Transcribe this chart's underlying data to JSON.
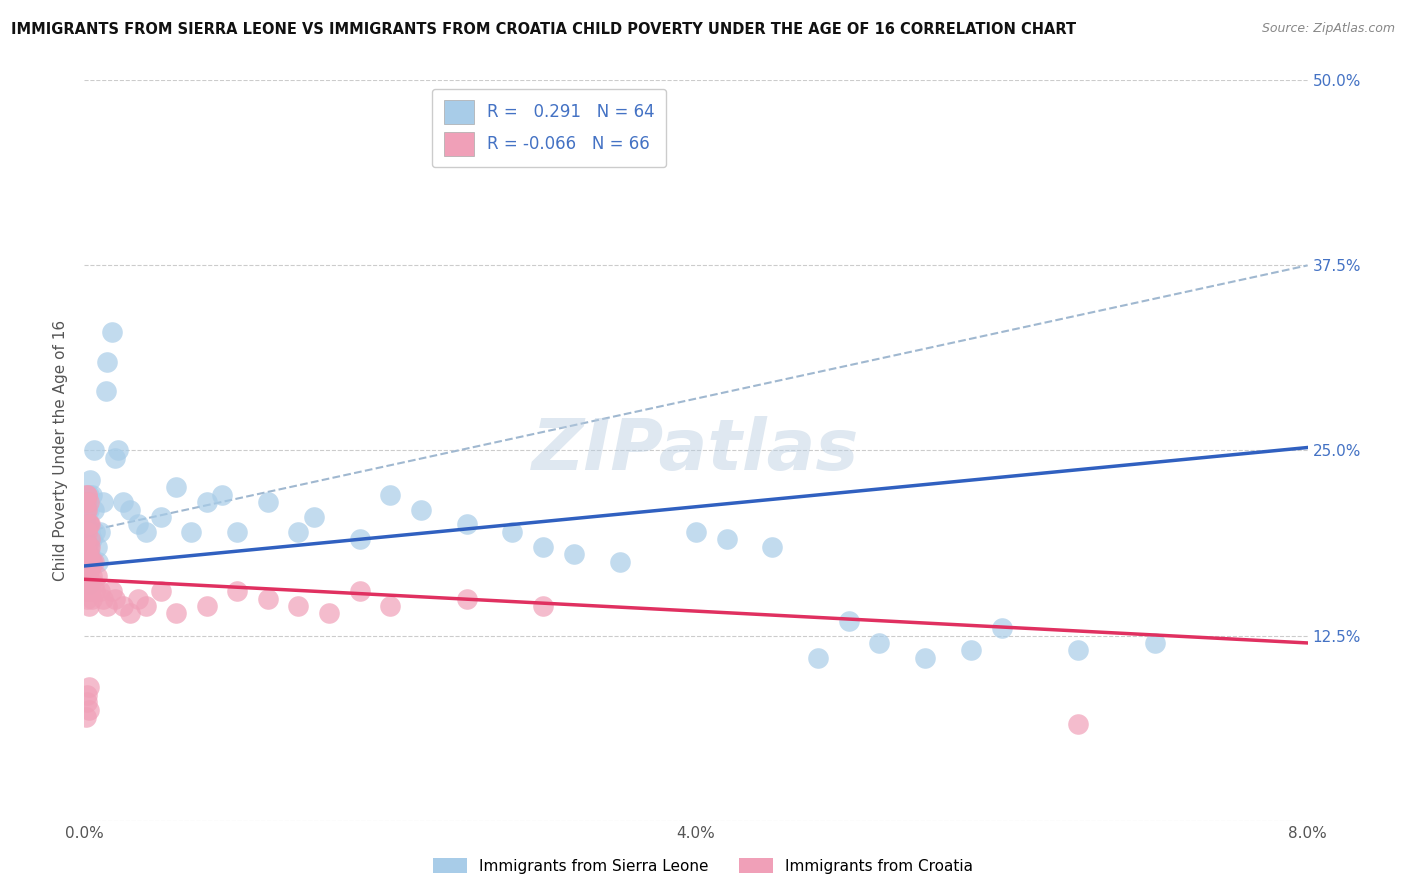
{
  "title": "IMMIGRANTS FROM SIERRA LEONE VS IMMIGRANTS FROM CROATIA CHILD POVERTY UNDER THE AGE OF 16 CORRELATION CHART",
  "source": "Source: ZipAtlas.com",
  "ylabel": "Child Poverty Under the Age of 16",
  "r_sierra": 0.291,
  "n_sierra": 64,
  "r_croatia": -0.066,
  "n_croatia": 66,
  "color_sierra": "#A8CCE8",
  "color_croatia": "#F0A0B8",
  "color_trend_sierra": "#3060C0",
  "color_trend_croatia": "#E03060",
  "color_trend_dashed": "#A0B8D0",
  "watermark": "ZIPatlas",
  "xlim": [
    0.0,
    0.08
  ],
  "ylim": [
    0.0,
    0.5
  ],
  "xticks": [
    0.0,
    0.02,
    0.04,
    0.06,
    0.08
  ],
  "yticks": [
    0.0,
    0.125,
    0.25,
    0.375,
    0.5
  ],
  "xtick_labels": [
    "0.0%",
    "",
    "4.0%",
    "",
    "8.0%"
  ],
  "ytick_labels_right": [
    "",
    "12.5%",
    "25.0%",
    "37.5%",
    "50.0%"
  ],
  "legend_bottom": [
    "Immigrants from Sierra Leone",
    "Immigrants from Croatia"
  ],
  "sierra_x": [
    0.0002,
    0.0003,
    0.0004,
    0.0003,
    0.0002,
    0.0005,
    0.0003,
    0.0002,
    0.0004,
    0.0006,
    0.0005,
    0.0007,
    0.0006,
    0.0008,
    0.0009,
    0.001,
    0.0012,
    0.0014,
    0.0015,
    0.0018,
    0.002,
    0.0022,
    0.0025,
    0.003,
    0.0035,
    0.004,
    0.005,
    0.006,
    0.007,
    0.008,
    0.009,
    0.01,
    0.012,
    0.014,
    0.015,
    0.018,
    0.02,
    0.022,
    0.025,
    0.028,
    0.03,
    0.032,
    0.035,
    0.04,
    0.042,
    0.045,
    0.048,
    0.05,
    0.052,
    0.055,
    0.058,
    0.06,
    0.065,
    0.07,
    0.0001,
    0.0002,
    0.0003,
    0.0001,
    0.0004,
    0.0002,
    0.0003,
    0.0001,
    0.0005,
    0.0003
  ],
  "sierra_y": [
    0.215,
    0.22,
    0.18,
    0.2,
    0.17,
    0.19,
    0.16,
    0.21,
    0.23,
    0.25,
    0.22,
    0.195,
    0.21,
    0.185,
    0.175,
    0.195,
    0.215,
    0.29,
    0.31,
    0.33,
    0.245,
    0.25,
    0.215,
    0.21,
    0.2,
    0.195,
    0.205,
    0.225,
    0.195,
    0.215,
    0.22,
    0.195,
    0.215,
    0.195,
    0.205,
    0.19,
    0.22,
    0.21,
    0.2,
    0.195,
    0.185,
    0.18,
    0.175,
    0.195,
    0.19,
    0.185,
    0.11,
    0.135,
    0.12,
    0.11,
    0.115,
    0.13,
    0.115,
    0.12,
    0.22,
    0.215,
    0.21,
    0.2,
    0.195,
    0.185,
    0.195,
    0.2,
    0.175,
    0.19
  ],
  "croatia_x": [
    0.0002,
    0.0003,
    0.0002,
    0.0004,
    0.0003,
    0.0005,
    0.0002,
    0.0004,
    0.0003,
    0.0006,
    0.0005,
    0.0007,
    0.0006,
    0.0008,
    0.001,
    0.0012,
    0.0015,
    0.0018,
    0.002,
    0.0025,
    0.003,
    0.0035,
    0.004,
    0.005,
    0.006,
    0.008,
    0.01,
    0.012,
    0.014,
    0.016,
    0.018,
    0.02,
    0.025,
    0.03,
    0.0001,
    0.0002,
    0.0001,
    0.0003,
    0.0002,
    0.0001,
    0.0003,
    0.0002,
    0.0004,
    0.0003,
    0.0005,
    0.0004,
    0.0002,
    0.0003,
    0.0001,
    0.0004,
    0.0003,
    0.0005,
    0.0002,
    0.0003,
    0.0004,
    0.0002,
    0.0001,
    0.0003,
    0.0002,
    0.0004,
    0.0002,
    0.0003,
    0.0001,
    0.0002,
    0.0003,
    0.065
  ],
  "croatia_y": [
    0.165,
    0.17,
    0.16,
    0.175,
    0.155,
    0.15,
    0.18,
    0.16,
    0.17,
    0.175,
    0.165,
    0.155,
    0.16,
    0.165,
    0.155,
    0.15,
    0.145,
    0.155,
    0.15,
    0.145,
    0.14,
    0.15,
    0.145,
    0.155,
    0.14,
    0.145,
    0.155,
    0.15,
    0.145,
    0.14,
    0.155,
    0.145,
    0.15,
    0.145,
    0.175,
    0.22,
    0.19,
    0.2,
    0.21,
    0.215,
    0.18,
    0.195,
    0.185,
    0.2,
    0.175,
    0.19,
    0.22,
    0.215,
    0.21,
    0.2,
    0.185,
    0.175,
    0.15,
    0.16,
    0.155,
    0.165,
    0.155,
    0.145,
    0.16,
    0.17,
    0.08,
    0.075,
    0.07,
    0.085,
    0.09,
    0.065
  ],
  "sierra_trend": [
    0.172,
    0.252
  ],
  "croatia_trend": [
    0.163,
    0.12
  ],
  "dashed_trend": [
    0.195,
    0.375
  ]
}
